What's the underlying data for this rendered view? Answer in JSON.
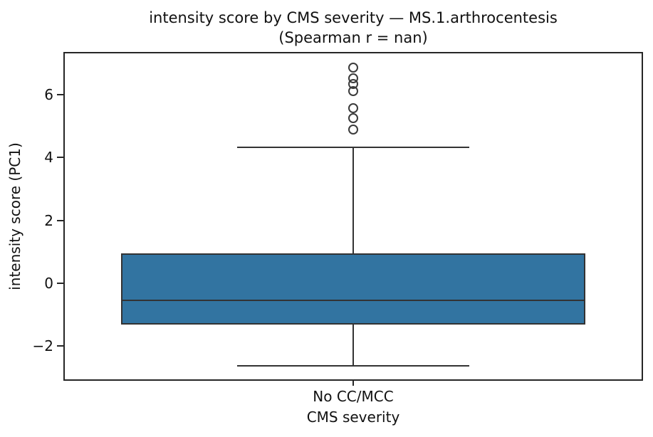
{
  "figure": {
    "title_line1": "intensity score by CMS severity — MS.1.arthrocentesis",
    "title_line2": "(Spearman r = nan)",
    "xlabel": "CMS severity",
    "ylabel": "intensity score (PC1)",
    "xtick_label": "No CC/MCC"
  },
  "chart_data": {
    "type": "boxplot",
    "title": "intensity score by CMS severity — MS.1.arthrocentesis (Spearman r = nan)",
    "xlabel": "CMS severity",
    "ylabel": "intensity score (PC1)",
    "categories": [
      "No CC/MCC"
    ],
    "series": [
      {
        "category": "No CC/MCC",
        "whisker_low": -2.63,
        "q1": -1.32,
        "median": -0.54,
        "q3": 0.95,
        "whisker_high": 4.32,
        "outliers": [
          6.86,
          6.52,
          6.33,
          6.12,
          5.58,
          5.25,
          4.9
        ]
      }
    ],
    "ylim": [
      -3.1,
      7.36
    ],
    "yticks": [
      -2,
      0,
      2,
      4,
      6
    ],
    "grid": false,
    "legend": null,
    "colors": {
      "box_fill": "#3274A1",
      "line": "#333333",
      "spine": "#262626",
      "text": "#111111"
    },
    "layout_hints": {
      "center_frac": 0.5,
      "box_width_frac": 0.8,
      "cap_width_frac": 0.4
    }
  }
}
